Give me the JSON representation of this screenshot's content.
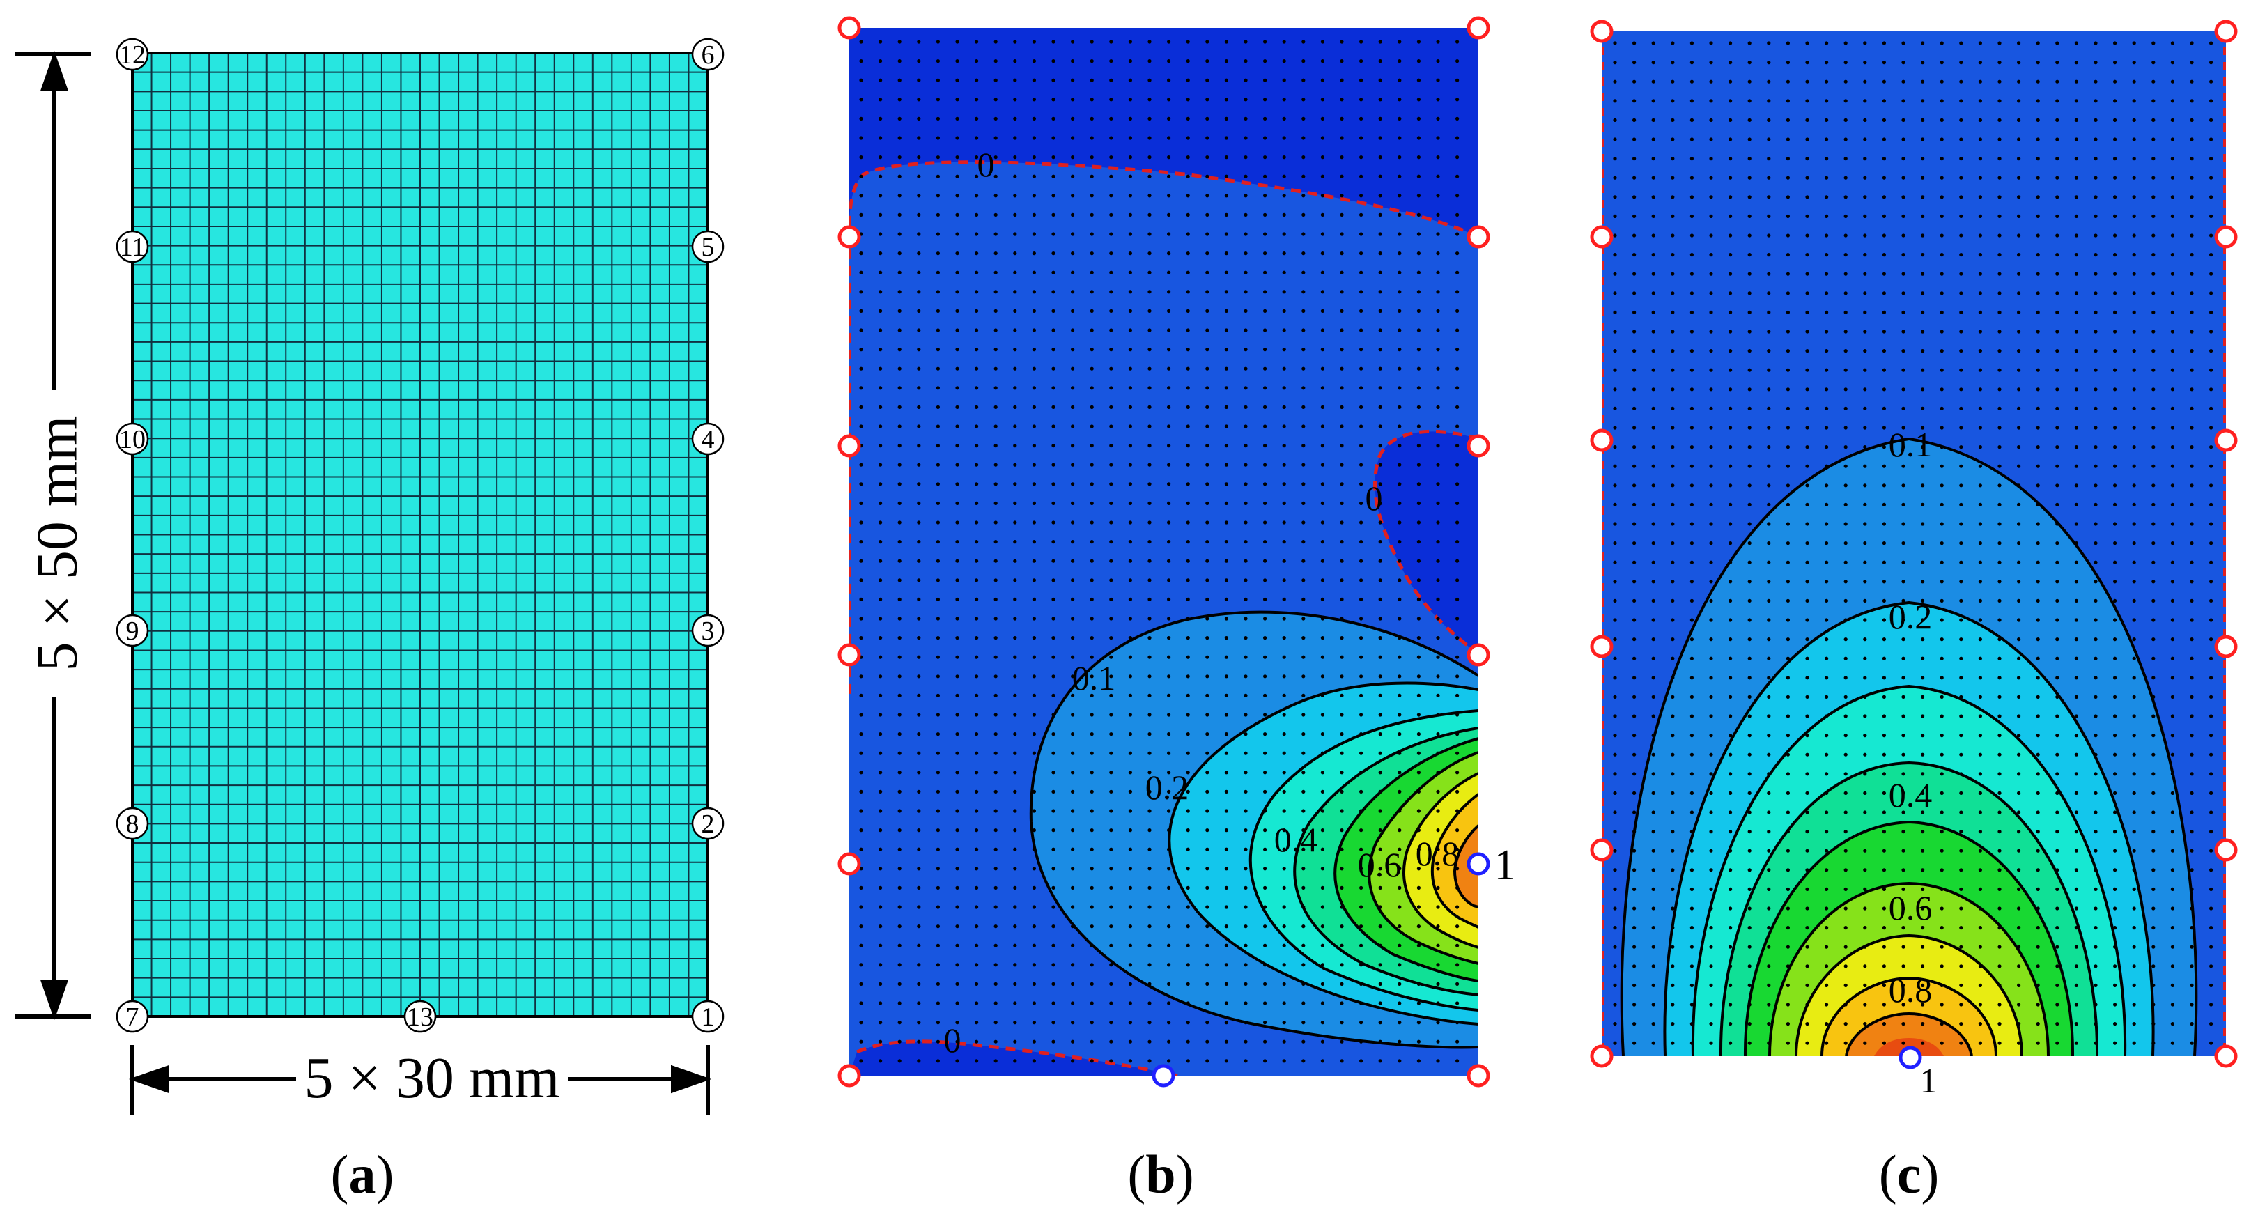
{
  "panels": {
    "a": {
      "label_open": "(",
      "label_letter": "a",
      "label_close": ")",
      "nodes": [
        "12",
        "11",
        "10",
        "9",
        "8",
        "7",
        "13",
        "1",
        "2",
        "3",
        "4",
        "5",
        "6"
      ],
      "height_dim": "5 × 50 mm",
      "width_dim": "5 × 30 mm",
      "mesh_color": "#27e6e0"
    },
    "b": {
      "label_open": "(",
      "label_letter": "b",
      "label_close": ")",
      "contour_labels": [
        "0",
        "0",
        "0",
        "0.1",
        "0.2",
        "0.4",
        "0.6",
        "0.8"
      ],
      "source_label": "1"
    },
    "c": {
      "label_open": "(",
      "label_letter": "c",
      "label_close": ")",
      "contour_labels": [
        "0.1",
        "0.2",
        "0.4",
        "0.6",
        "0.8"
      ],
      "source_label": "1"
    }
  },
  "colors": {
    "mesh_fill": "#27e6e0",
    "level_neg": "#0a2ed8",
    "level_0": "#1856e0",
    "level_1": "#1b8ce4",
    "level_2": "#13c6ec",
    "level_3": "#16e8d2",
    "level_4": "#10e096",
    "level_5": "#18d832",
    "level_6": "#86e21a",
    "level_7": "#e8ec12",
    "level_8": "#f8c410",
    "level_9": "#f08212",
    "level_10": "#e84c10",
    "zero_contour": "#e02020",
    "boundary_node": "#ff2020",
    "source_node": "#2020ff"
  }
}
